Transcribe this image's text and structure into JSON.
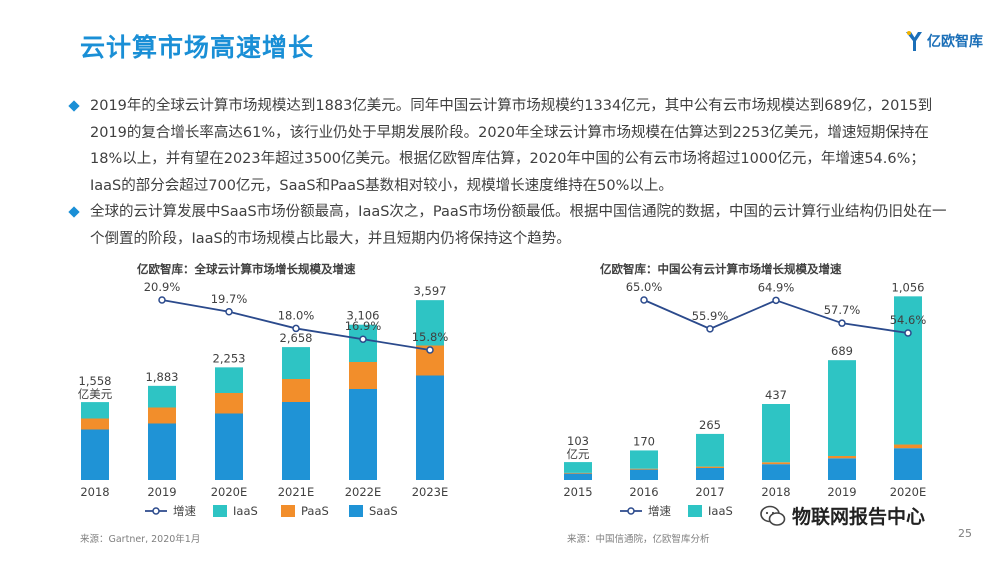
{
  "page": {
    "title": "云计算市场高速增长",
    "logo_text": "亿欧智库",
    "page_number": "25",
    "watermark": "物联网报告中心"
  },
  "bullets": [
    "2019年的全球云计算市场规模达到1883亿美元。同年中国云计算市场规模约1334亿元，其中公有云市场规模达到689亿，2015到2019的复合增长率高达61%，该行业仍处于早期发展阶段。2020年全球云计算市场规模在估算达到2253亿美元，增速短期保持在18%以上，并有望在2023年超过3500亿美元。根据亿欧智库估算，2020年中国的公有云市场将超过1000亿元，年增速54.6%；IaaS的部分会超过700亿元，SaaS和PaaS基数相对较小，规模增长速度维持在50%以上。",
    "全球的云计算发展中SaaS市场份额最高，IaaS次之，PaaS市场份额最低。根据中国信通院的数据，中国的云计算行业结构仍旧处在一个倒置的阶段，IaaS的市场规模占比最大，并且短期内仍将保持这个趋势。"
  ],
  "colors": {
    "accent": "#1a8fd6",
    "iaas": "#2ec4c4",
    "paas": "#f28e2b",
    "saas": "#1f93d6",
    "growth_line": "#2b4a8c"
  },
  "chart_data": [
    {
      "type": "bar",
      "stacked": true,
      "title": "亿欧智库：全球云计算市场增长规模及增速",
      "categories": [
        "2018",
        "2019",
        "2020E",
        "2021E",
        "2022E",
        "2023E"
      ],
      "totals": [
        1558,
        1883,
        2253,
        2658,
        3106,
        3597
      ],
      "total_labels": [
        "1,558",
        "1,883",
        "2,253",
        "2,658",
        "3,106",
        "3,597"
      ],
      "first_unit": "亿美元",
      "series": [
        {
          "name": "SaaS",
          "values": [
            1010,
            1130,
            1330,
            1560,
            1820,
            2090
          ]
        },
        {
          "name": "PaaS",
          "values": [
            220,
            320,
            410,
            460,
            540,
            600
          ]
        },
        {
          "name": "IaaS",
          "values": [
            328,
            433,
            513,
            638,
            746,
            907
          ]
        }
      ],
      "growth": {
        "name": "增速",
        "values": [
          20.9,
          19.7,
          18.0,
          16.9,
          15.8
        ],
        "labels": [
          "20.9%",
          "19.7%",
          "18.0%",
          "16.9%",
          "15.8%"
        ],
        "ylim": [
          10,
          25
        ]
      },
      "legend": [
        "增速",
        "IaaS",
        "PaaS",
        "SaaS"
      ],
      "ylim": [
        0,
        4000
      ],
      "source": "来源：Gartner, 2020年1月"
    },
    {
      "type": "bar",
      "stacked": true,
      "title": "亿欧智库：中国公有云计算市场增长规模及增速",
      "categories": [
        "2015",
        "2016",
        "2017",
        "2018",
        "2019",
        "2020E"
      ],
      "totals": [
        103,
        170,
        265,
        437,
        689,
        1056
      ],
      "total_labels": [
        "103",
        "170",
        "265",
        "437",
        "689",
        "1,056"
      ],
      "first_unit": "亿元",
      "series": [
        {
          "name": "SaaS",
          "values": [
            37,
            60,
            69,
            91,
            125,
            183
          ]
        },
        {
          "name": "PaaS",
          "values": [
            4,
            5,
            8,
            11,
            13,
            21
          ]
        },
        {
          "name": "IaaS",
          "values": [
            62,
            105,
            188,
            335,
            551,
            852
          ]
        }
      ],
      "growth": {
        "name": "增速",
        "values": [
          65.0,
          55.9,
          64.9,
          57.7,
          54.6
        ],
        "labels": [
          "65.0%",
          "55.9%",
          "64.9%",
          "57.7%",
          "54.6%"
        ],
        "ylim": [
          40,
          75
        ]
      },
      "legend": [
        "增速",
        "IaaS"
      ],
      "ylim": [
        0,
        1150
      ],
      "source": "来源：中国信通院，亿欧智库分析"
    }
  ]
}
